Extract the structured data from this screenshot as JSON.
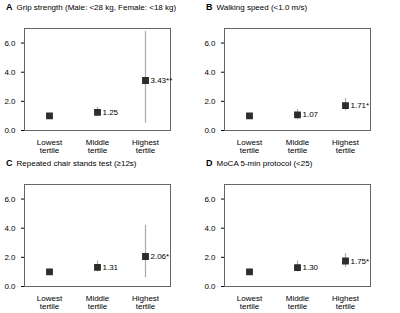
{
  "chart_data": [
    {
      "type": "scatter",
      "label": "A",
      "title": "Grip strength (Male: <28 kg, Female: <18 kg)",
      "categories": [
        "Lowest tertile",
        "Middle tertile",
        "Highest tertile"
      ],
      "values": [
        1.0,
        1.25,
        3.43
      ],
      "ci_lower": [
        null,
        1.0,
        0.5
      ],
      "ci_upper": [
        null,
        1.6,
        6.8
      ],
      "annotations": [
        null,
        "1.25",
        "3.43**"
      ],
      "ylim": [
        0,
        7
      ],
      "yticks": [
        0,
        2,
        4,
        6
      ],
      "marker": "square",
      "color": "#2d2d2d",
      "ci_color": "#aaaaaa"
    },
    {
      "type": "scatter",
      "label": "B",
      "title": "Walking speed (<1.0 m/s)",
      "categories": [
        "Lowest tertile",
        "Middle tertile",
        "Highest tertile"
      ],
      "values": [
        1.0,
        1.07,
        1.71
      ],
      "ci_lower": [
        null,
        0.75,
        1.35
      ],
      "ci_upper": [
        null,
        1.45,
        2.2
      ],
      "annotations": [
        null,
        "1.07",
        "1.71*"
      ],
      "ylim": [
        0,
        7
      ],
      "yticks": [
        0,
        2,
        4,
        6
      ],
      "marker": "square",
      "color": "#2d2d2d",
      "ci_color": "#aaaaaa"
    },
    {
      "type": "scatter",
      "label": "C",
      "title": "Repeated chair stands test (≥12s)",
      "categories": [
        "Lowest tertile",
        "Middle tertile",
        "Highest tertile"
      ],
      "values": [
        1.0,
        1.31,
        2.06
      ],
      "ci_lower": [
        null,
        1.0,
        0.6
      ],
      "ci_upper": [
        null,
        1.75,
        4.2
      ],
      "annotations": [
        null,
        "1.31",
        "2.06*"
      ],
      "ylim": [
        0,
        7
      ],
      "yticks": [
        0,
        2,
        4,
        6
      ],
      "marker": "square",
      "color": "#2d2d2d",
      "ci_color": "#aaaaaa"
    },
    {
      "type": "scatter",
      "label": "D",
      "title": "MoCA 5-min protocol (<25)",
      "categories": [
        "Lowest tertile",
        "Middle tertile",
        "Highest tertile"
      ],
      "values": [
        1.0,
        1.3,
        1.75
      ],
      "ci_lower": [
        null,
        1.0,
        1.3
      ],
      "ci_upper": [
        null,
        1.75,
        2.25
      ],
      "annotations": [
        null,
        "1.30",
        "1.75*"
      ],
      "ylim": [
        0,
        7
      ],
      "yticks": [
        0,
        2,
        4,
        6
      ],
      "marker": "square",
      "color": "#2d2d2d",
      "ci_color": "#aaaaaa"
    }
  ]
}
